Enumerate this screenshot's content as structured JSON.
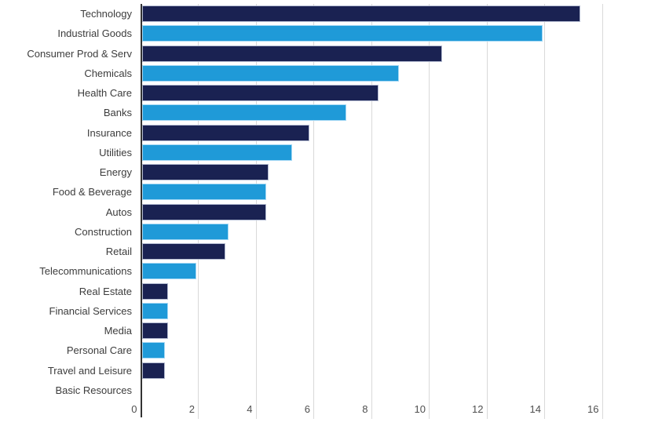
{
  "chart_data": {
    "type": "bar",
    "orientation": "horizontal",
    "title": "",
    "xlabel": "",
    "ylabel": "",
    "categories": [
      "Technology",
      "Industrial Goods",
      "Consumer Prod & Serv",
      "Chemicals",
      "Health Care",
      "Banks",
      "Insurance",
      "Utilities",
      "Energy",
      "Food & Beverage",
      "Autos",
      "Construction",
      "Retail",
      "Telecommunications",
      "Real Estate",
      "Financial Services",
      "Media",
      "Personal Care",
      "Travel and Leisure",
      "Basic Resources"
    ],
    "values": [
      15.2,
      13.9,
      10.4,
      8.9,
      8.2,
      7.1,
      5.8,
      5.2,
      4.4,
      4.3,
      4.3,
      3.0,
      2.9,
      1.9,
      0.9,
      0.9,
      0.9,
      0.8,
      0.8,
      0
    ],
    "xticks": [
      0,
      2,
      4,
      6,
      8,
      10,
      12,
      14,
      16
    ],
    "xlim": [
      0,
      16
    ],
    "grid": "vertical-only",
    "legend": "none",
    "bar_color_pattern": "alternating"
  },
  "colors": {
    "bar_dark": "#1a2252",
    "bar_light": "#1f9ad8",
    "bar_dark_border": "#b4bcd2",
    "bar_light_border": "#a6d9f5",
    "gridline": "#d9d9d9",
    "axis_line": "#333333",
    "tick_label": "#4f4f4f",
    "category_label": "#3c3c3c",
    "background": "#ffffff"
  }
}
